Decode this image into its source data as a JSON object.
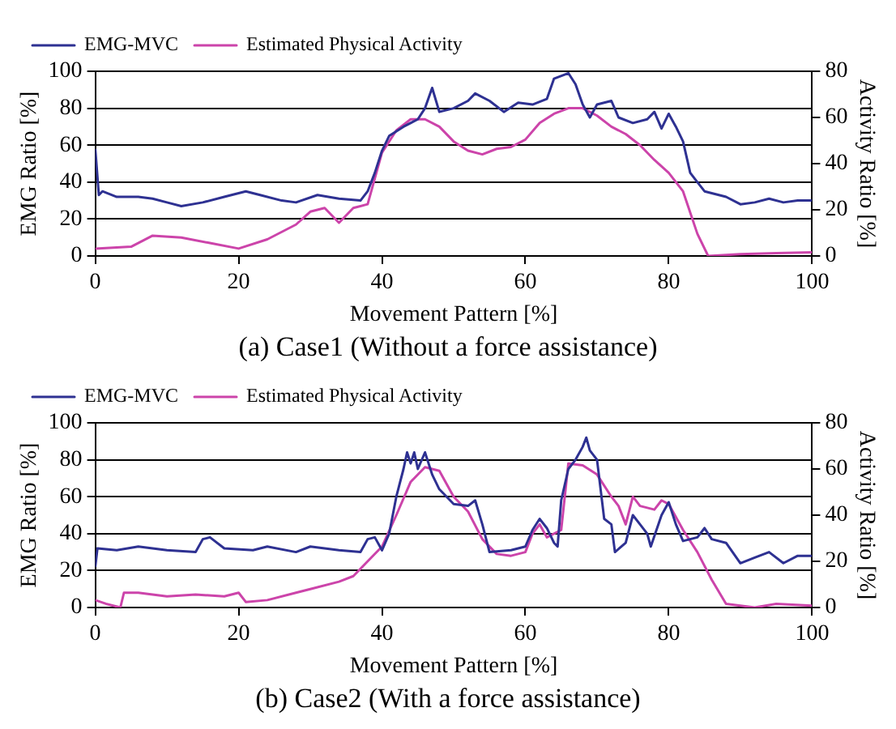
{
  "chart_data": [
    {
      "type": "line",
      "title": "(a) Case1 (Without a force assistance)",
      "xlabel": "Movement Pattern [%]",
      "ylabel": "EMG Ratio [%]",
      "y2label": "Activity Ratio [%]",
      "xlim": [
        0,
        100
      ],
      "xticks": [
        0,
        20,
        40,
        60,
        80,
        100
      ],
      "ylim": [
        0,
        100
      ],
      "yticks": [
        0,
        20,
        40,
        60,
        80,
        100
      ],
      "y2lim": [
        0,
        80
      ],
      "y2ticks": [
        0,
        20,
        40,
        60,
        80
      ],
      "grid": "y",
      "legend": "top left",
      "marker": "none",
      "line_style": "solid",
      "series": [
        {
          "name": "EMG-MVC",
          "color": "#2e3192",
          "x": [
            0,
            0.5,
            1,
            3,
            6,
            8,
            10,
            12,
            15,
            18,
            21,
            23,
            26,
            28,
            31,
            34,
            37,
            38,
            39,
            40,
            41,
            43,
            45,
            46,
            47,
            48,
            50,
            52,
            53,
            55,
            57,
            59,
            61,
            63,
            64,
            66,
            67,
            68,
            69,
            70,
            72,
            73,
            75,
            77,
            78,
            79,
            80,
            81,
            82,
            83,
            84,
            85,
            88,
            90,
            92,
            94,
            96,
            98,
            100
          ],
          "values": [
            58,
            33,
            35,
            32,
            32,
            31,
            29,
            27,
            29,
            32,
            35,
            33,
            30,
            29,
            33,
            31,
            30,
            35,
            45,
            57,
            65,
            70,
            74,
            80,
            91,
            78,
            80,
            84,
            88,
            84,
            78,
            83,
            82,
            85,
            96,
            99,
            93,
            82,
            75,
            82,
            84,
            75,
            72,
            74,
            78,
            69,
            77,
            70,
            62,
            45,
            40,
            35,
            32,
            28,
            29,
            31,
            29,
            30,
            30
          ]
        },
        {
          "name": "Estimated Physical Activity",
          "color": "#cc44aa",
          "axis": "y2",
          "x": [
            0,
            5,
            8,
            12,
            16,
            20,
            24,
            28,
            30,
            32,
            34,
            36,
            38,
            40,
            42,
            44,
            46,
            48,
            50,
            52,
            54,
            56,
            58,
            60,
            62,
            64,
            66,
            68,
            70,
            72,
            74,
            76,
            78,
            80,
            82,
            84,
            85.5,
            90,
            95,
            100
          ],
          "values": [
            3.2,
            4,
            8.8,
            8,
            5.6,
            3.2,
            7.2,
            13.6,
            19.2,
            20.8,
            14.4,
            20.8,
            22.4,
            44.8,
            54.4,
            59.2,
            59.2,
            56,
            49.6,
            45.6,
            44,
            46.4,
            47.2,
            50.4,
            57.6,
            61.6,
            64,
            64,
            60.8,
            56,
            52.8,
            48,
            41.6,
            36,
            28,
            9.6,
            0,
            0.8,
            1.2,
            1.6
          ]
        }
      ]
    },
    {
      "type": "line",
      "title": "(b) Case2 (With a force assistance)",
      "xlabel": "Movement Pattern [%]",
      "ylabel": "EMG Ratio [%]",
      "y2label": "Activity Ratio [%]",
      "xlim": [
        0,
        100
      ],
      "xticks": [
        0,
        20,
        40,
        60,
        80,
        100
      ],
      "ylim": [
        0,
        100
      ],
      "yticks": [
        0,
        20,
        40,
        60,
        80,
        100
      ],
      "y2lim": [
        0,
        80
      ],
      "y2ticks": [
        0,
        20,
        40,
        60,
        80
      ],
      "grid": "y",
      "legend": "top left",
      "marker": "none",
      "line_style": "solid",
      "series": [
        {
          "name": "EMG-MVC",
          "color": "#2e3192",
          "x": [
            0,
            0.3,
            3,
            6,
            10,
            14,
            15,
            16,
            18,
            22,
            24,
            28,
            30,
            34,
            37,
            38,
            39,
            40,
            41,
            42,
            43,
            43.5,
            44,
            44.5,
            45,
            46,
            47,
            48,
            50,
            52,
            53,
            54,
            55,
            58,
            60,
            61,
            62,
            63,
            64,
            64.5,
            65,
            66,
            67,
            68,
            68.5,
            69,
            70,
            71,
            72,
            72.5,
            74,
            75,
            76,
            77,
            77.5,
            79,
            80,
            81,
            82,
            84,
            85,
            86,
            88,
            90,
            92,
            94,
            96,
            98,
            100
          ],
          "values": [
            22,
            32,
            31,
            33,
            31,
            30,
            37,
            38,
            32,
            31,
            33,
            30,
            33,
            31,
            30,
            37,
            38,
            31,
            40,
            60,
            75,
            84,
            78,
            84,
            75,
            84,
            72,
            64,
            56,
            55,
            58,
            45,
            30,
            31,
            33,
            42,
            48,
            43,
            35,
            33,
            58,
            75,
            80,
            87,
            92,
            85,
            80,
            48,
            45,
            30,
            35,
            50,
            45,
            40,
            33,
            50,
            57,
            45,
            36,
            38,
            43,
            37,
            35,
            24,
            27,
            30,
            24,
            28,
            28
          ]
        },
        {
          "name": "Estimated Physical Activity",
          "color": "#cc44aa",
          "axis": "y2",
          "x": [
            0,
            1.5,
            3.5,
            4,
            6,
            10,
            14,
            18,
            20,
            21,
            24,
            28,
            30,
            34,
            36,
            38,
            40,
            42,
            44,
            46,
            48,
            50,
            52,
            54,
            56,
            58,
            60,
            61,
            62,
            63,
            65,
            66,
            68,
            70,
            72,
            73,
            74,
            75,
            76,
            78,
            79,
            80,
            82,
            84,
            86,
            88,
            90,
            92,
            95,
            100
          ],
          "values": [
            3.2,
            1.6,
            0,
            6.4,
            6.4,
            4.8,
            5.6,
            4.8,
            6.4,
            2.4,
            3.2,
            6.4,
            8,
            11.2,
            13.6,
            20,
            26.4,
            40,
            54.4,
            60.8,
            59.2,
            48,
            41.6,
            29.6,
            23.2,
            22.4,
            24,
            32,
            36,
            30.4,
            33.6,
            62.4,
            61.6,
            57.6,
            48,
            44,
            36,
            48,
            44,
            42.4,
            46.4,
            44.8,
            33.6,
            24,
            12,
            1.6,
            0.8,
            0,
            1.6,
            0.8
          ]
        }
      ]
    }
  ]
}
